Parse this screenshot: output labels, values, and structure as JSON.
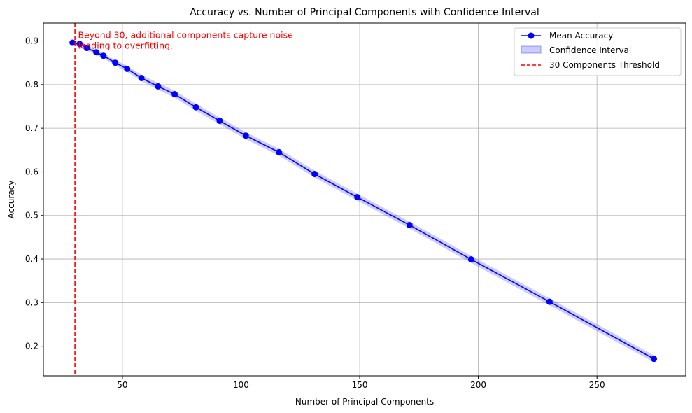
{
  "chart_data": {
    "type": "line",
    "title": "Accuracy vs. Number of Principal Components with Confidence Interval",
    "xlabel": "Number of Principal Components",
    "ylabel": "Accuracy",
    "xlim": [
      16.7,
      287.4
    ],
    "ylim": [
      0.132,
      0.941
    ],
    "xticks": [
      50,
      100,
      150,
      200,
      250
    ],
    "yticks": [
      0.2,
      0.3,
      0.4,
      0.5,
      0.6,
      0.7,
      0.8,
      0.9
    ],
    "xtick_labels": [
      "50",
      "100",
      "150",
      "200",
      "250"
    ],
    "ytick_labels": [
      "0.2",
      "0.3",
      "0.4",
      "0.5",
      "0.6",
      "0.7",
      "0.8",
      "0.9"
    ],
    "grid": true,
    "legend_position": "top-right",
    "series": [
      {
        "name": "Mean Accuracy",
        "color": "#0000ff",
        "marker": "circle",
        "x": [
          29,
          32,
          35,
          39,
          42,
          47,
          52,
          58,
          65,
          72,
          81,
          91,
          102,
          116,
          131,
          149,
          171,
          197,
          230,
          274
        ],
        "y": [
          0.896,
          0.893,
          0.884,
          0.874,
          0.866,
          0.85,
          0.836,
          0.815,
          0.796,
          0.778,
          0.748,
          0.717,
          0.683,
          0.645,
          0.595,
          0.542,
          0.478,
          0.399,
          0.302,
          0.171
        ],
        "ci_lower": [
          0.891,
          0.887,
          0.878,
          0.868,
          0.86,
          0.844,
          0.829,
          0.808,
          0.788,
          0.77,
          0.74,
          0.709,
          0.675,
          0.637,
          0.587,
          0.534,
          0.47,
          0.391,
          0.294,
          0.163
        ],
        "ci_upper": [
          0.901,
          0.899,
          0.89,
          0.88,
          0.872,
          0.856,
          0.843,
          0.822,
          0.804,
          0.786,
          0.756,
          0.725,
          0.691,
          0.653,
          0.603,
          0.55,
          0.486,
          0.407,
          0.31,
          0.179
        ]
      }
    ],
    "confidence_band": {
      "name": "Confidence Interval",
      "color": "#0000ff",
      "opacity": 0.2
    },
    "threshold": {
      "name": "30 Components Threshold",
      "x": 30,
      "color": "#ff0000",
      "style": "dashed"
    },
    "annotation": {
      "lines": [
        "Beyond 30, additional components capture noise",
        "leading to overfitting."
      ],
      "color": "#ff0000",
      "x": 31,
      "y": 0.913
    }
  }
}
